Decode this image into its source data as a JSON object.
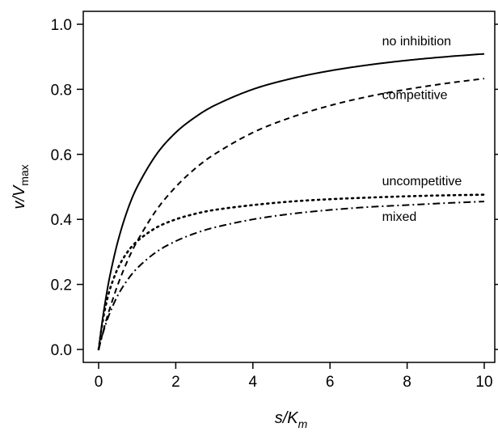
{
  "chart_data": {
    "type": "line",
    "title": "",
    "xlabel": {
      "main": "s/K",
      "sub": "m"
    },
    "ylabel": {
      "main": "v/V",
      "sub": "max"
    },
    "xlim": [
      0,
      10
    ],
    "ylim": [
      0.0,
      1.0
    ],
    "xticks": [
      0,
      2,
      4,
      6,
      8,
      10
    ],
    "yticks": [
      0.0,
      0.2,
      0.4,
      0.6,
      0.8,
      1.0
    ],
    "xtick_labels": [
      "0",
      "2",
      "4",
      "6",
      "8",
      "10"
    ],
    "ytick_labels": [
      "0.0",
      "0.2",
      "0.4",
      "0.6",
      "0.8",
      "1.0"
    ],
    "grid": false,
    "legend": "none",
    "x": [
      0,
      0.1,
      0.2,
      0.3,
      0.5,
      0.75,
      1,
      1.5,
      2,
      2.5,
      3,
      4,
      5,
      6,
      7,
      8,
      9,
      10
    ],
    "series": [
      {
        "name": "no inhibition",
        "style": "solid",
        "values": [
          0,
          0.091,
          0.167,
          0.231,
          0.333,
          0.429,
          0.5,
          0.6,
          0.667,
          0.714,
          0.75,
          0.8,
          0.833,
          0.857,
          0.875,
          0.889,
          0.9,
          0.909
        ]
      },
      {
        "name": "competitive",
        "style": "dashed",
        "values": [
          0,
          0.048,
          0.091,
          0.13,
          0.2,
          0.273,
          0.333,
          0.429,
          0.5,
          0.556,
          0.6,
          0.667,
          0.714,
          0.75,
          0.778,
          0.8,
          0.818,
          0.833
        ]
      },
      {
        "name": "uncompetitive",
        "style": "dotted",
        "values": [
          0,
          0.083,
          0.143,
          0.188,
          0.25,
          0.3,
          0.333,
          0.375,
          0.4,
          0.417,
          0.429,
          0.444,
          0.455,
          0.462,
          0.467,
          0.471,
          0.474,
          0.476
        ]
      },
      {
        "name": "mixed",
        "style": "dashdot",
        "values": [
          0,
          0.045,
          0.083,
          0.115,
          0.167,
          0.214,
          0.25,
          0.3,
          0.333,
          0.357,
          0.375,
          0.4,
          0.417,
          0.429,
          0.438,
          0.444,
          0.45,
          0.455
        ]
      }
    ],
    "annotations": [
      "no inhibition",
      "competitive",
      "uncompetitive",
      "mixed"
    ]
  }
}
